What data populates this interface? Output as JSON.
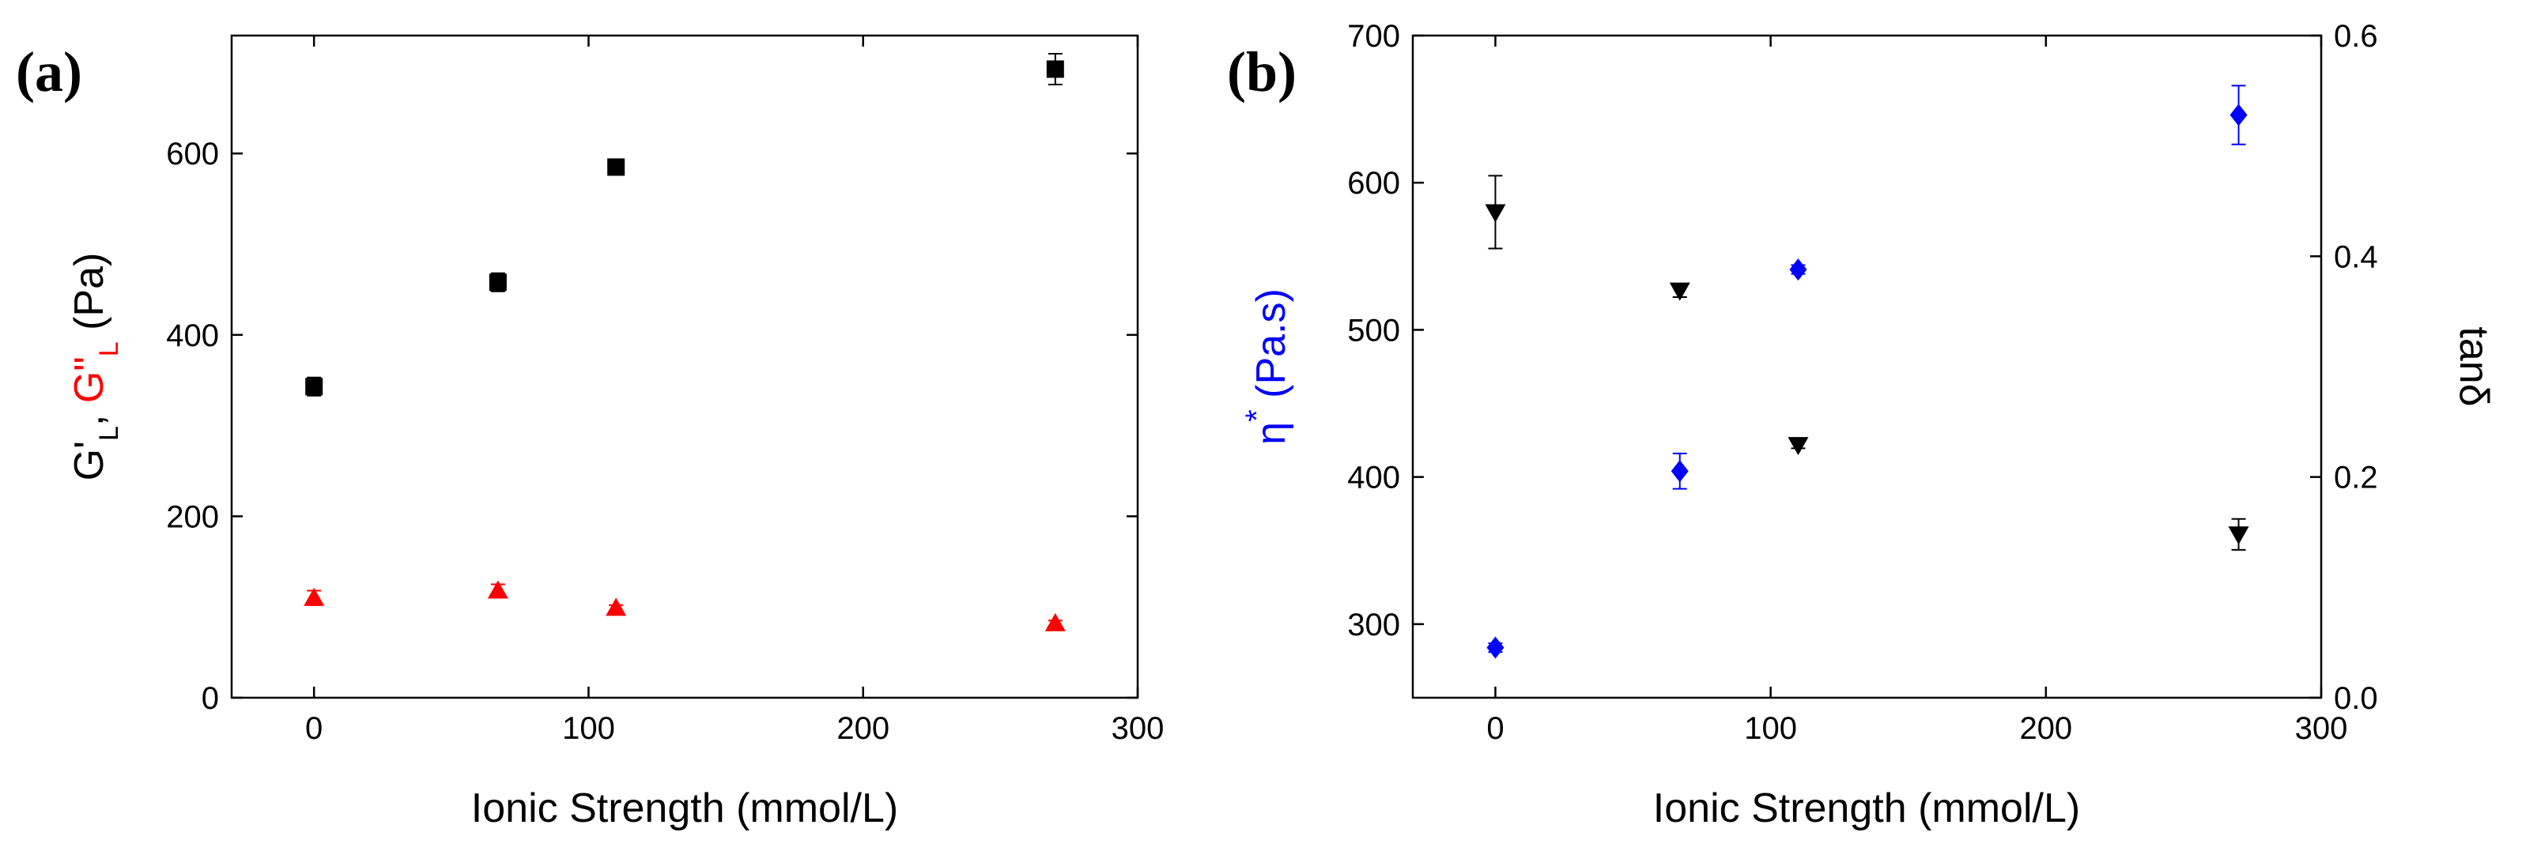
{
  "chart_data": [
    {
      "panel": "(a)",
      "type": "scatter",
      "xlabel": "Ionic Strength (mmol/L)",
      "ylabel_parts": [
        {
          "text": "G'",
          "color": "#000000",
          "sub": false
        },
        {
          "text": "L",
          "color": "#000000",
          "sub": true
        },
        {
          "text": ", ",
          "color": "#000000",
          "sub": false
        },
        {
          "text": "G\"",
          "color": "#ff0000",
          "sub": false
        },
        {
          "text": "L",
          "color": "#ff0000",
          "sub": true
        },
        {
          "text": " (Pa)",
          "color": "#000000",
          "sub": false
        }
      ],
      "xlim": [
        -30,
        300
      ],
      "ylim": [
        0,
        730
      ],
      "xticks": [
        0,
        100,
        200,
        300
      ],
      "yticks": [
        0,
        200,
        400,
        600
      ],
      "series": [
        {
          "name": "G'L",
          "marker": "square",
          "color": "#000000",
          "points": [
            {
              "x": 0,
              "y": 343,
              "err": 10
            },
            {
              "x": 67,
              "y": 458,
              "err": 10
            },
            {
              "x": 110,
              "y": 585,
              "err": 7
            },
            {
              "x": 270,
              "y": 693,
              "err": 17
            }
          ]
        },
        {
          "name": "G\"L",
          "marker": "triangle-up",
          "color": "#ff0000",
          "points": [
            {
              "x": 0,
              "y": 110,
              "err": 8
            },
            {
              "x": 67,
              "y": 118,
              "err": 7
            },
            {
              "x": 110,
              "y": 99,
              "err": 3
            },
            {
              "x": 270,
              "y": 82,
              "err": 3
            }
          ]
        }
      ]
    },
    {
      "panel": "(b)",
      "type": "scatter",
      "xlabel": "Ionic Strength (mmol/L)",
      "ylabel_left": "η* (Pa.s)",
      "ylabel_left_parts": [
        {
          "text": "η",
          "sup": false
        },
        {
          "text": "*",
          "sup": true
        },
        {
          "text": " (Pa.s)",
          "sup": false
        }
      ],
      "ylabel_left_color": "#0000ff",
      "ylabel_right": "tanδ",
      "xlim": [
        -30,
        300
      ],
      "ylim_left": [
        250,
        700
      ],
      "ylim_right": [
        0,
        0.6
      ],
      "xticks": [
        0,
        100,
        200,
        300
      ],
      "yticks_left": [
        300,
        400,
        500,
        600,
        700
      ],
      "yticks_right": [
        0.0,
        0.2,
        0.4,
        0.6
      ],
      "yticks_right_labels": [
        "0.0",
        "0.2",
        "0.4",
        "0.6"
      ],
      "series": [
        {
          "name": "η*",
          "axis": "left",
          "marker": "diamond",
          "color": "#0000ff",
          "points": [
            {
              "x": 0,
              "y": 284,
              "err": 3
            },
            {
              "x": 67,
              "y": 404,
              "err": 12
            },
            {
              "x": 110,
              "y": 541,
              "err": 3
            },
            {
              "x": 270,
              "y": 646,
              "err": 20
            }
          ]
        },
        {
          "name": "tanδ",
          "axis": "right",
          "marker": "triangle-down",
          "color": "#000000",
          "points": [
            {
              "x": 0,
              "y": 0.44,
              "err": 0.033
            },
            {
              "x": 67,
              "y": 0.369,
              "err": 0.006
            },
            {
              "x": 110,
              "y": 0.229,
              "err": 0.003
            },
            {
              "x": 270,
              "y": 0.148,
              "err": 0.014
            }
          ]
        }
      ]
    }
  ]
}
